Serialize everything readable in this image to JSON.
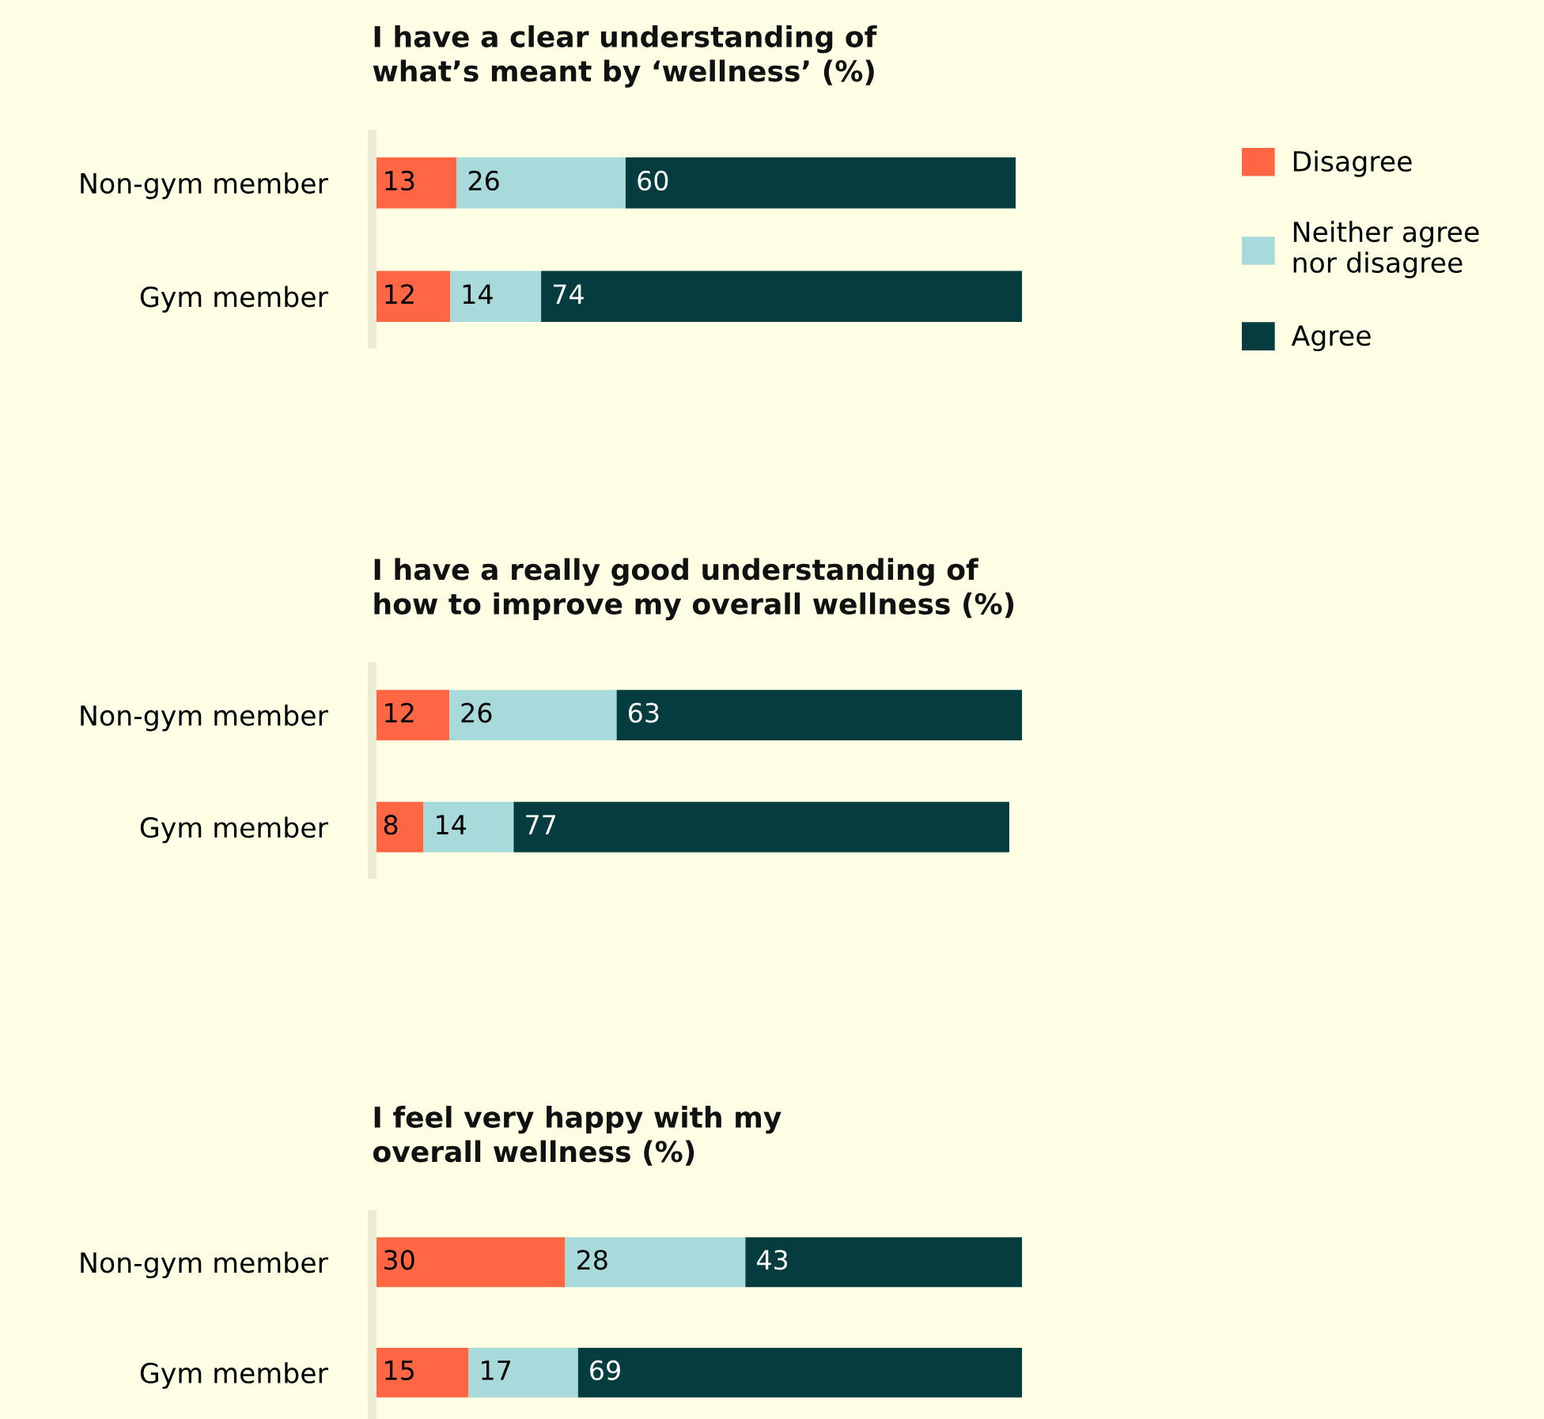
{
  "chart_data": [
    {
      "type": "bar",
      "orientation": "horizontal",
      "stacked": true,
      "data_labels": true,
      "tick_labels": "y",
      "legend": "right",
      "grid": false,
      "title": "I have a clear understanding of\nwhat’s meant by ‘wellness’ (%)",
      "categories": [
        "Non-gym member",
        "Gym member"
      ],
      "series": [
        {
          "name": "Disagree",
          "color": "#ff6643",
          "values": [
            13,
            12
          ]
        },
        {
          "name": "Neither agree\nnor disagree",
          "color": "#a8dadb",
          "values": [
            26,
            14
          ]
        },
        {
          "name": "Agree",
          "color": "#053c3f",
          "values": [
            60,
            74
          ]
        }
      ]
    },
    {
      "type": "bar",
      "orientation": "horizontal",
      "stacked": true,
      "data_labels": true,
      "tick_labels": "y",
      "grid": false,
      "title": "I have a really good understanding of\nhow to improve my overall wellness (%)",
      "categories": [
        "Non-gym member",
        "Gym member"
      ],
      "series": [
        {
          "color": "#ff6643",
          "values": [
            12,
            8
          ]
        },
        {
          "color": "#a8dadb",
          "values": [
            26,
            14
          ]
        },
        {
          "color": "#053c3f",
          "values": [
            63,
            77
          ]
        }
      ]
    },
    {
      "type": "bar",
      "orientation": "horizontal",
      "stacked": true,
      "data_labels": true,
      "tick_labels": "y",
      "grid": false,
      "title": "I feel very happy with my\noverall wellness (%)",
      "categories": [
        "Non-gym member",
        "Gym member"
      ],
      "series": [
        {
          "color": "#ff6643",
          "values": [
            30,
            15
          ]
        },
        {
          "color": "#a8dadb",
          "values": [
            28,
            17
          ]
        },
        {
          "color": "#053c3f",
          "values": [
            43,
            69
          ]
        }
      ]
    }
  ]
}
